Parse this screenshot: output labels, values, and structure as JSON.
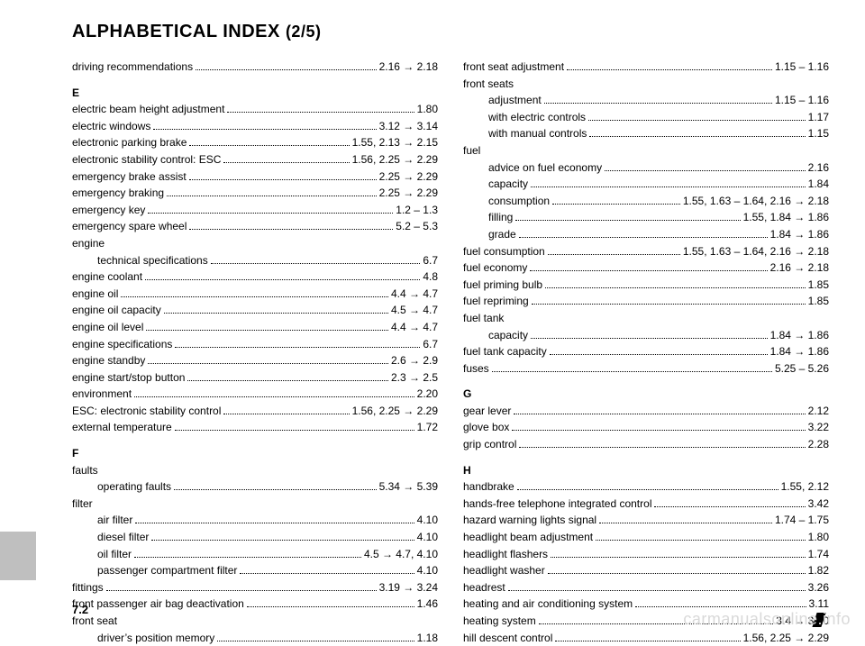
{
  "title_main": "ALPHABETICAL INDEX",
  "title_part": "(2/5)",
  "page_number": "7.2",
  "watermark": "carmanualsonline.info",
  "left": [
    {
      "t": "entry",
      "label": "driving recommendations",
      "page": "2.16 → 2.18"
    },
    {
      "t": "head",
      "label": "E"
    },
    {
      "t": "entry",
      "label": "electric beam height adjustment",
      "page": "1.80"
    },
    {
      "t": "entry",
      "label": "electric windows",
      "page": "3.12 → 3.14"
    },
    {
      "t": "entry",
      "label": "electronic parking brake",
      "page": "1.55, 2.13 → 2.15"
    },
    {
      "t": "entry",
      "label": "electronic stability control: ESC",
      "page": "1.56, 2.25 → 2.29"
    },
    {
      "t": "entry",
      "label": "emergency brake assist",
      "page": "2.25 → 2.29"
    },
    {
      "t": "entry",
      "label": "emergency braking",
      "page": "2.25 → 2.29"
    },
    {
      "t": "entry",
      "label": "emergency key",
      "page": "1.2 – 1.3"
    },
    {
      "t": "entry",
      "label": "emergency spare wheel",
      "page": "5.2 – 5.3"
    },
    {
      "t": "group",
      "label": "engine"
    },
    {
      "t": "sub",
      "label": "technical specifications",
      "page": "6.7"
    },
    {
      "t": "entry",
      "label": "engine coolant",
      "page": "4.8"
    },
    {
      "t": "entry",
      "label": "engine oil",
      "page": "4.4 → 4.7"
    },
    {
      "t": "entry",
      "label": "engine oil capacity",
      "page": "4.5 → 4.7"
    },
    {
      "t": "entry",
      "label": "engine oil level",
      "page": "4.4 → 4.7"
    },
    {
      "t": "entry",
      "label": "engine specifications",
      "page": "6.7"
    },
    {
      "t": "entry",
      "label": "engine standby",
      "page": "2.6 → 2.9"
    },
    {
      "t": "entry",
      "label": "engine start/stop button",
      "page": "2.3 → 2.5"
    },
    {
      "t": "entry",
      "label": "environment",
      "page": "2.20"
    },
    {
      "t": "entry",
      "label": "ESC: electronic stability control",
      "page": "1.56, 2.25 → 2.29"
    },
    {
      "t": "entry",
      "label": "external temperature",
      "page": "1.72"
    },
    {
      "t": "head",
      "label": "F"
    },
    {
      "t": "group",
      "label": "faults"
    },
    {
      "t": "sub",
      "label": "operating faults",
      "page": "5.34 → 5.39"
    },
    {
      "t": "group",
      "label": "filter"
    },
    {
      "t": "sub",
      "label": "air filter",
      "page": "4.10"
    },
    {
      "t": "sub",
      "label": "diesel filter",
      "page": "4.10"
    },
    {
      "t": "sub",
      "label": "oil filter",
      "page": "4.5 → 4.7, 4.10"
    },
    {
      "t": "sub",
      "label": "passenger compartment filter",
      "page": "4.10"
    },
    {
      "t": "entry",
      "label": "fittings",
      "page": "3.19 → 3.24"
    },
    {
      "t": "entry",
      "label": "front passenger air bag deactivation",
      "page": "1.46"
    },
    {
      "t": "group",
      "label": "front seat"
    },
    {
      "t": "sub",
      "label": "driver’s position memory",
      "page": "1.18"
    }
  ],
  "right": [
    {
      "t": "entry",
      "label": "front seat adjustment",
      "page": "1.15 – 1.16"
    },
    {
      "t": "group",
      "label": "front seats"
    },
    {
      "t": "sub",
      "label": "adjustment",
      "page": "1.15 – 1.16"
    },
    {
      "t": "sub",
      "label": "with electric controls",
      "page": "1.17"
    },
    {
      "t": "sub",
      "label": "with manual controls",
      "page": "1.15"
    },
    {
      "t": "group",
      "label": "fuel"
    },
    {
      "t": "sub",
      "label": "advice on fuel economy",
      "page": "2.16"
    },
    {
      "t": "sub",
      "label": "capacity",
      "page": "1.84"
    },
    {
      "t": "sub",
      "label": "consumption",
      "page": "1.55, 1.63 – 1.64, 2.16 → 2.18"
    },
    {
      "t": "sub",
      "label": "filling",
      "page": "1.55, 1.84 → 1.86"
    },
    {
      "t": "sub",
      "label": "grade",
      "page": "1.84 → 1.86"
    },
    {
      "t": "entry",
      "label": "fuel consumption",
      "page": "1.55, 1.63 – 1.64, 2.16 → 2.18"
    },
    {
      "t": "entry",
      "label": "fuel economy",
      "page": "2.16 → 2.18"
    },
    {
      "t": "entry",
      "label": "fuel priming bulb",
      "page": "1.85"
    },
    {
      "t": "entry",
      "label": "fuel repriming",
      "page": "1.85"
    },
    {
      "t": "group",
      "label": "fuel tank"
    },
    {
      "t": "sub",
      "label": "capacity",
      "page": "1.84 → 1.86"
    },
    {
      "t": "entry",
      "label": "fuel tank capacity",
      "page": "1.84 → 1.86"
    },
    {
      "t": "entry",
      "label": "fuses",
      "page": "5.25 – 5.26"
    },
    {
      "t": "head",
      "label": "G"
    },
    {
      "t": "entry",
      "label": "gear lever",
      "page": "2.12"
    },
    {
      "t": "entry",
      "label": "glove box",
      "page": "3.22"
    },
    {
      "t": "entry",
      "label": "grip control",
      "page": "2.28"
    },
    {
      "t": "head",
      "label": "H"
    },
    {
      "t": "entry",
      "label": "handbrake",
      "page": "1.55, 2.12"
    },
    {
      "t": "entry",
      "label": "hands-free telephone integrated control",
      "page": "3.42"
    },
    {
      "t": "entry",
      "label": "hazard warning lights signal",
      "page": "1.74 – 1.75"
    },
    {
      "t": "entry",
      "label": "headlight beam adjustment",
      "page": "1.80"
    },
    {
      "t": "entry",
      "label": "headlight flashers",
      "page": "1.74"
    },
    {
      "t": "entry",
      "label": "headlight washer",
      "page": "1.82"
    },
    {
      "t": "entry",
      "label": "headrest",
      "page": "3.26"
    },
    {
      "t": "entry",
      "label": "heating and air conditioning system",
      "page": "3.11"
    },
    {
      "t": "entry",
      "label": "heating system",
      "page": "3.4 → 3.10"
    },
    {
      "t": "entry",
      "label": "hill descent control",
      "page": "1.56, 2.25 → 2.29"
    }
  ]
}
